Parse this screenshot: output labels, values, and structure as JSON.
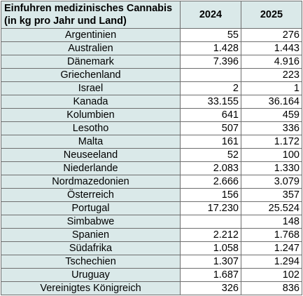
{
  "table": {
    "title_line1": "Einfuhren medizinisches Cannabis",
    "title_line2": "(in kg pro Jahr und Land)",
    "columns": [
      "2024",
      "2025"
    ],
    "rows": [
      {
        "country": "Argentinien",
        "y2024": "55",
        "y2025": "276"
      },
      {
        "country": "Australien",
        "y2024": "1.428",
        "y2025": "1.443"
      },
      {
        "country": "Dänemark",
        "y2024": "7.396",
        "y2025": "4.916"
      },
      {
        "country": "Griechenland",
        "y2024": "",
        "y2025": "223"
      },
      {
        "country": "Israel",
        "y2024": "2",
        "y2025": "1"
      },
      {
        "country": "Kanada",
        "y2024": "33.155",
        "y2025": "36.164"
      },
      {
        "country": "Kolumbien",
        "y2024": "641",
        "y2025": "459"
      },
      {
        "country": "Lesotho",
        "y2024": "507",
        "y2025": "336"
      },
      {
        "country": "Malta",
        "y2024": "161",
        "y2025": "1.172"
      },
      {
        "country": "Neuseeland",
        "y2024": "52",
        "y2025": "100"
      },
      {
        "country": "Niederlande",
        "y2024": "2.083",
        "y2025": "1.330"
      },
      {
        "country": "Nordmazedonien",
        "y2024": "2.666",
        "y2025": "3.079"
      },
      {
        "country": "Österreich",
        "y2024": "156",
        "y2025": "357"
      },
      {
        "country": "Portugal",
        "y2024": "17.230",
        "y2025": "25.524"
      },
      {
        "country": "Simbabwe",
        "y2024": "",
        "y2025": "148"
      },
      {
        "country": "Spanien",
        "y2024": "2.212",
        "y2025": "1.768"
      },
      {
        "country": "Südafrika",
        "y2024": "1.058",
        "y2025": "1.247"
      },
      {
        "country": "Tschechien",
        "y2024": "1.307",
        "y2025": "1.294"
      },
      {
        "country": "Uruguay",
        "y2024": "1.687",
        "y2025": "102"
      },
      {
        "country": "Vereinigtes Königreich",
        "y2024": "326",
        "y2025": "836"
      }
    ]
  }
}
